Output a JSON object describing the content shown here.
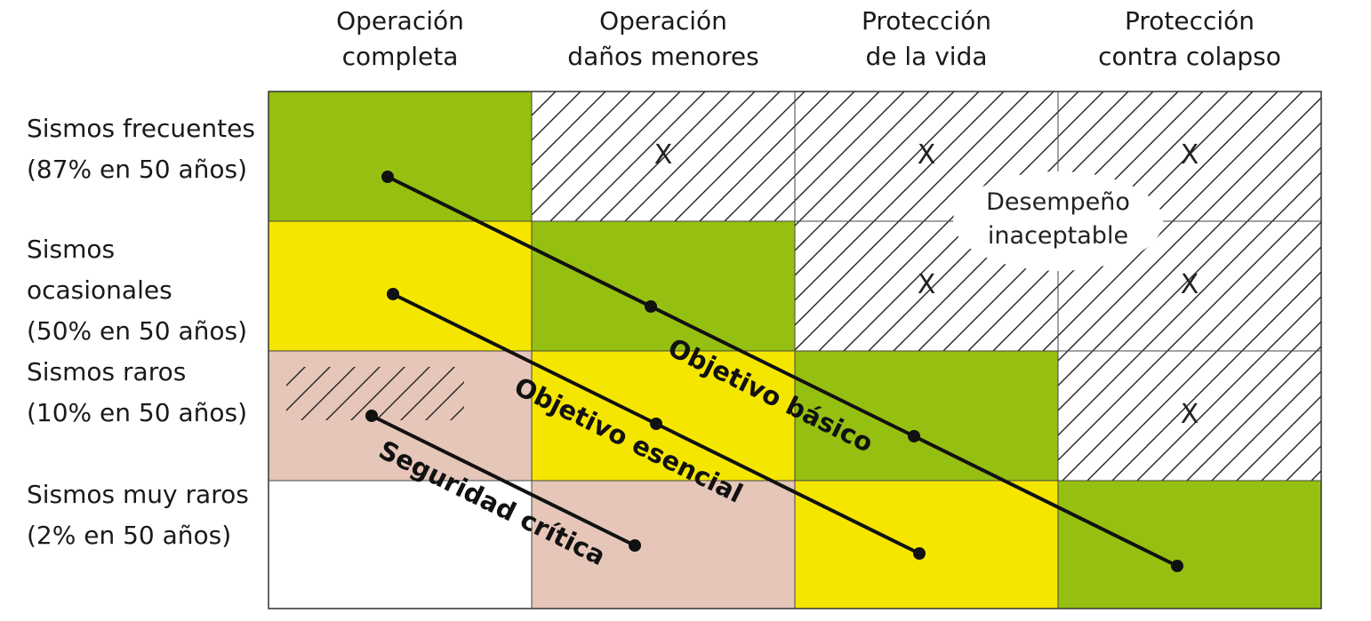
{
  "columns": [
    "Operación\ncompleta",
    "Operación\ndaños menores",
    "Protección\nde la vida",
    "Protección\ncontra colapso"
  ],
  "rows": [
    "Sismos frecuentes\n(87% en 50 años)",
    "Sismos ocasionales\n(50% en 50 años)",
    "Sismos raros\n(10% en 50 años)",
    "Sismos muy raros\n(2% en 50 años)"
  ],
  "colors": {
    "green": "#95c011",
    "yellow": "#f5e600",
    "pink": "#e6c6b9",
    "white": "#ffffff",
    "hatch": "#222222",
    "line": "#111111"
  },
  "cells": [
    [
      "green",
      "hatch",
      "hatch",
      "hatch"
    ],
    [
      "yellow",
      "green",
      "hatch",
      "hatch"
    ],
    [
      "pink-hatch",
      "yellow",
      "green",
      "hatch"
    ],
    [
      "white",
      "pink",
      "yellow",
      "green"
    ]
  ],
  "x_marks": [
    {
      "row": 0,
      "col": 1,
      "text": "X"
    },
    {
      "row": 0,
      "col": 2,
      "text": "X"
    },
    {
      "row": 0,
      "col": 3,
      "text": "X"
    },
    {
      "row": 1,
      "col": 2,
      "text": "X"
    },
    {
      "row": 1,
      "col": 3,
      "text": "X"
    },
    {
      "row": 2,
      "col": 3,
      "text": "X"
    }
  ],
  "unacceptable_label": [
    "Desempeño",
    "inaceptable"
  ],
  "objectives": [
    {
      "name": "Objetivo  básico",
      "points": [
        [
          0,
          0
        ],
        [
          1,
          1
        ],
        [
          2,
          2
        ],
        [
          3,
          3
        ]
      ]
    },
    {
      "name": "Objetivo esencial",
      "points": [
        [
          0,
          1
        ],
        [
          1,
          2
        ],
        [
          2,
          3
        ]
      ]
    },
    {
      "name": "Seguridad crítica",
      "points": [
        [
          0,
          2
        ],
        [
          1,
          3
        ]
      ]
    }
  ]
}
